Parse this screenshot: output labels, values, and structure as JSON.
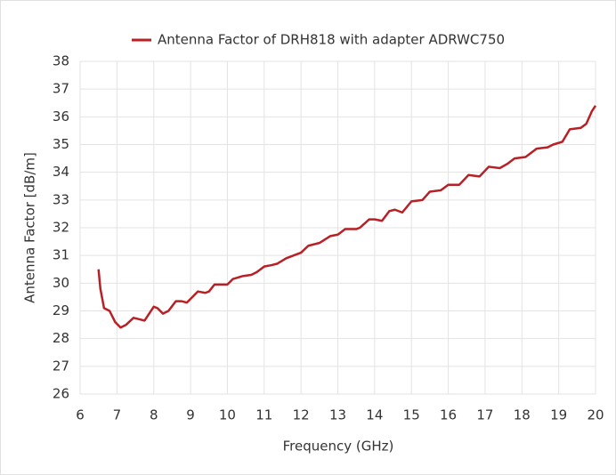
{
  "chart_data": {
    "type": "line",
    "legend_position": "top",
    "x_label": "Frequency (GHz)",
    "y_label": "Antenna Factor [dB/m]",
    "xlim": [
      6,
      20
    ],
    "xticks": [
      6,
      7,
      8,
      9,
      10,
      11,
      12,
      13,
      14,
      15,
      16,
      17,
      18,
      19,
      20
    ],
    "ylim": [
      26,
      38
    ],
    "yticks": [
      26,
      27,
      28,
      29,
      30,
      31,
      32,
      33,
      34,
      35,
      36,
      37,
      38
    ],
    "grid": true,
    "x": [
      6.5,
      6.55,
      6.65,
      6.8,
      6.95,
      7.1,
      7.25,
      7.45,
      7.6,
      7.75,
      7.9,
      8.0,
      8.1,
      8.25,
      8.4,
      8.6,
      8.75,
      8.9,
      9.05,
      9.2,
      9.4,
      9.5,
      9.65,
      9.85,
      10.0,
      10.15,
      10.4,
      10.65,
      10.8,
      11.0,
      11.2,
      11.35,
      11.6,
      11.8,
      12.0,
      12.2,
      12.5,
      12.8,
      13.0,
      13.2,
      13.5,
      13.6,
      13.85,
      14.0,
      14.2,
      14.4,
      14.55,
      14.75,
      15.0,
      15.3,
      15.5,
      15.8,
      16.0,
      16.3,
      16.55,
      16.85,
      17.1,
      17.4,
      17.6,
      17.8,
      18.1,
      18.4,
      18.7,
      18.85,
      19.1,
      19.3,
      19.6,
      19.75,
      19.9,
      20.0
    ],
    "series": [
      {
        "name": "Antenna Factor of DRH818 with adapter ADRWC750",
        "color": "#b82025",
        "values": [
          30.5,
          29.8,
          29.1,
          29.0,
          28.6,
          28.4,
          28.5,
          28.75,
          28.7,
          28.65,
          28.95,
          29.15,
          29.1,
          28.9,
          29.0,
          29.35,
          29.35,
          29.3,
          29.5,
          29.7,
          29.65,
          29.7,
          29.95,
          29.95,
          29.95,
          30.15,
          30.25,
          30.3,
          30.4,
          30.6,
          30.65,
          30.7,
          30.9,
          31.0,
          31.1,
          31.35,
          31.45,
          31.7,
          31.75,
          31.95,
          31.95,
          32.0,
          32.3,
          32.3,
          32.25,
          32.6,
          32.65,
          32.55,
          32.95,
          33.0,
          33.3,
          33.35,
          33.55,
          33.55,
          33.9,
          33.85,
          34.2,
          34.15,
          34.3,
          34.5,
          34.55,
          34.85,
          34.9,
          35.0,
          35.1,
          35.55,
          35.6,
          35.75,
          36.2,
          36.4
        ]
      }
    ]
  }
}
